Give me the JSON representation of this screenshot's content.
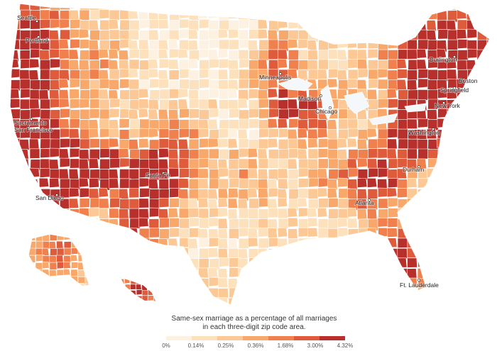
{
  "map": {
    "cities": [
      {
        "name": "Seattle"
      },
      {
        "name": "Portland"
      },
      {
        "name": "Sacramento"
      },
      {
        "name": "San Francisco"
      },
      {
        "name": "San Diego"
      },
      {
        "name": "Santa Fe"
      },
      {
        "name": "Minneapolis"
      },
      {
        "name": "Madison"
      },
      {
        "name": "Chicago"
      },
      {
        "name": "Burlington"
      },
      {
        "name": "Boston"
      },
      {
        "name": "Springfield"
      },
      {
        "name": "New York"
      },
      {
        "name": "Washington"
      },
      {
        "name": "Durham"
      },
      {
        "name": "Atlanta"
      },
      {
        "name": "Ft. Lauderdale"
      }
    ]
  },
  "legend": {
    "title": "Same-sex marriage as a percentage of all marriages in each three-digit zip code area.",
    "labels": [
      "0%",
      "0.14%",
      "0.25%",
      "0.36%",
      "1.68%",
      "3.00%",
      "4.32%"
    ],
    "colors": [
      "#fdf2e2",
      "#fde1bd",
      "#fcc996",
      "#f9a86c",
      "#f0814e",
      "#de5b3c",
      "#b8302c"
    ]
  }
}
